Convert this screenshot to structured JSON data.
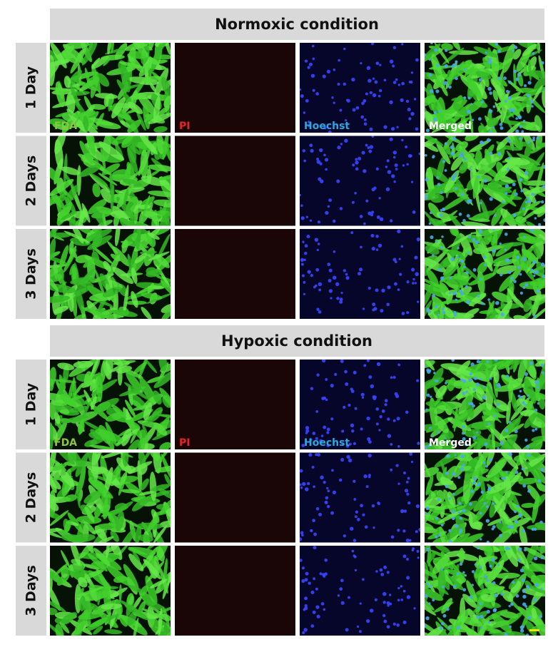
{
  "sections": [
    {
      "title": "Normoxic condition",
      "rows": [
        "1 Day",
        "2 Days",
        "3 Days"
      ],
      "channels": [
        "FDA",
        "PI",
        "Hoechst",
        "Merged"
      ]
    },
    {
      "title": "Hypoxic condition",
      "rows": [
        "1 Day",
        "2 Days",
        "3 Days"
      ],
      "channels": [
        "FDA",
        "PI",
        "Hoechst",
        "Merged"
      ]
    }
  ]
}
